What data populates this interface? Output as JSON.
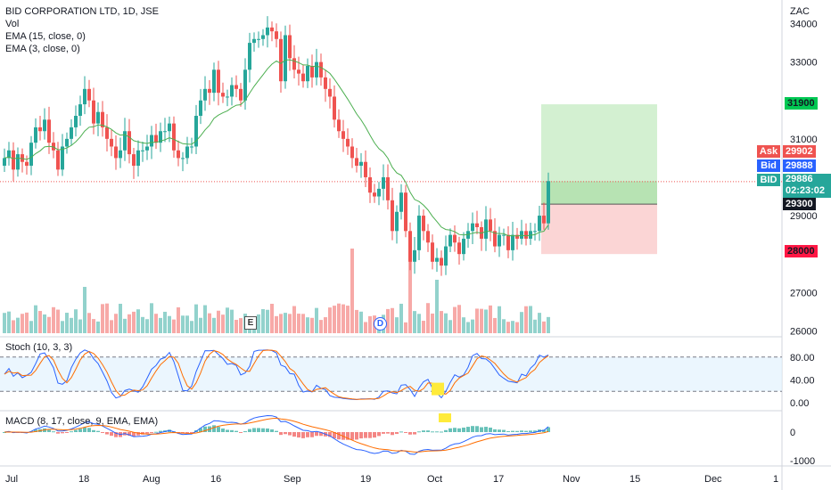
{
  "header": {
    "symbol_line": "BID CORPORATION LTD, 1D, JSE",
    "indicators": [
      "Vol",
      "EMA (15, close, 0)",
      "EMA (3, close, 0)"
    ]
  },
  "axis": {
    "currency": "ZAC",
    "price_ticks": [
      "34000",
      "33000",
      "31000",
      "29000",
      "27000",
      "26000"
    ],
    "stoch_ticks": [
      "80.00",
      "40.00",
      "0.00"
    ],
    "macd_ticks": [
      "0",
      "-1000"
    ],
    "x_ticks": [
      "Jul",
      "18",
      "Aug",
      "16",
      "Sep",
      "19",
      "Oct",
      "17",
      "Nov",
      "15",
      "Dec",
      "1"
    ]
  },
  "price_tags": {
    "target": "31900",
    "ask_label": "Ask",
    "ask": "29902",
    "bid_label": "Bid",
    "bid": "29888",
    "last_label": "BID",
    "last": "29886",
    "countdown": "02:23:02",
    "entry": "29300",
    "stop": "28000"
  },
  "markers": {
    "earnings": "E",
    "dividend": "D"
  },
  "stoch": {
    "label": "Stoch (10, 3, 3)"
  },
  "macd": {
    "label": "MACD (8, 17, close, 9, EMA, EMA)"
  },
  "colors": {
    "up": "#26a69a",
    "down": "#ef5350",
    "ema": "#4caf50",
    "ask": "#ef5350",
    "bid": "#2962ff",
    "last": "#26a69a",
    "target_zone": "#c8ecc6",
    "stop_zone": "#fbd0d0",
    "stoch_k": "#2962ff",
    "stoch_d": "#ff6d00",
    "stoch_band": "#e3f2fd"
  },
  "chart_data": {
    "type": "candlestick",
    "series": [
      {
        "name": "Vol"
      },
      {
        "name": "EMA (15, close, 0)"
      },
      {
        "name": "EMA (3, close, 0)"
      }
    ],
    "x_range": [
      "Jul",
      "Dec"
    ],
    "y_range": [
      25800,
      34500
    ],
    "closes": [
      30500,
      30700,
      30200,
      30600,
      30400,
      30300,
      30900,
      31300,
      31200,
      31500,
      30900,
      30700,
      30200,
      30800,
      31000,
      31300,
      31600,
      31900,
      32300,
      32000,
      31400,
      31700,
      31300,
      31000,
      30800,
      30500,
      30700,
      31200,
      30600,
      30300,
      30700,
      30700,
      30800,
      31100,
      30900,
      31200,
      31200,
      31400,
      30700,
      30500,
      30500,
      30800,
      30800,
      31600,
      32000,
      32300,
      32200,
      32800,
      32200,
      32100,
      32100,
      32400,
      32300,
      32000,
      32800,
      33500,
      33600,
      33600,
      33700,
      33900,
      33800,
      33600,
      32500,
      33700,
      33100,
      32800,
      32700,
      32500,
      32900,
      32600,
      33000,
      32600,
      32300,
      32100,
      31500,
      31200,
      31000,
      30800,
      30500,
      30300,
      30400,
      30000,
      29600,
      29500,
      29700,
      30000,
      29400,
      28600,
      29100,
      29600,
      28600,
      27800,
      28100,
      29000,
      28600,
      28300,
      27800,
      27900,
      27700,
      28200,
      28500,
      28300,
      28000,
      28400,
      28600,
      28800,
      28700,
      28400,
      28900,
      28600,
      28200,
      28500,
      28500,
      28100,
      28500,
      28400,
      28600,
      28400,
      28600,
      28600,
      29000,
      28800,
      29900
    ]
  }
}
